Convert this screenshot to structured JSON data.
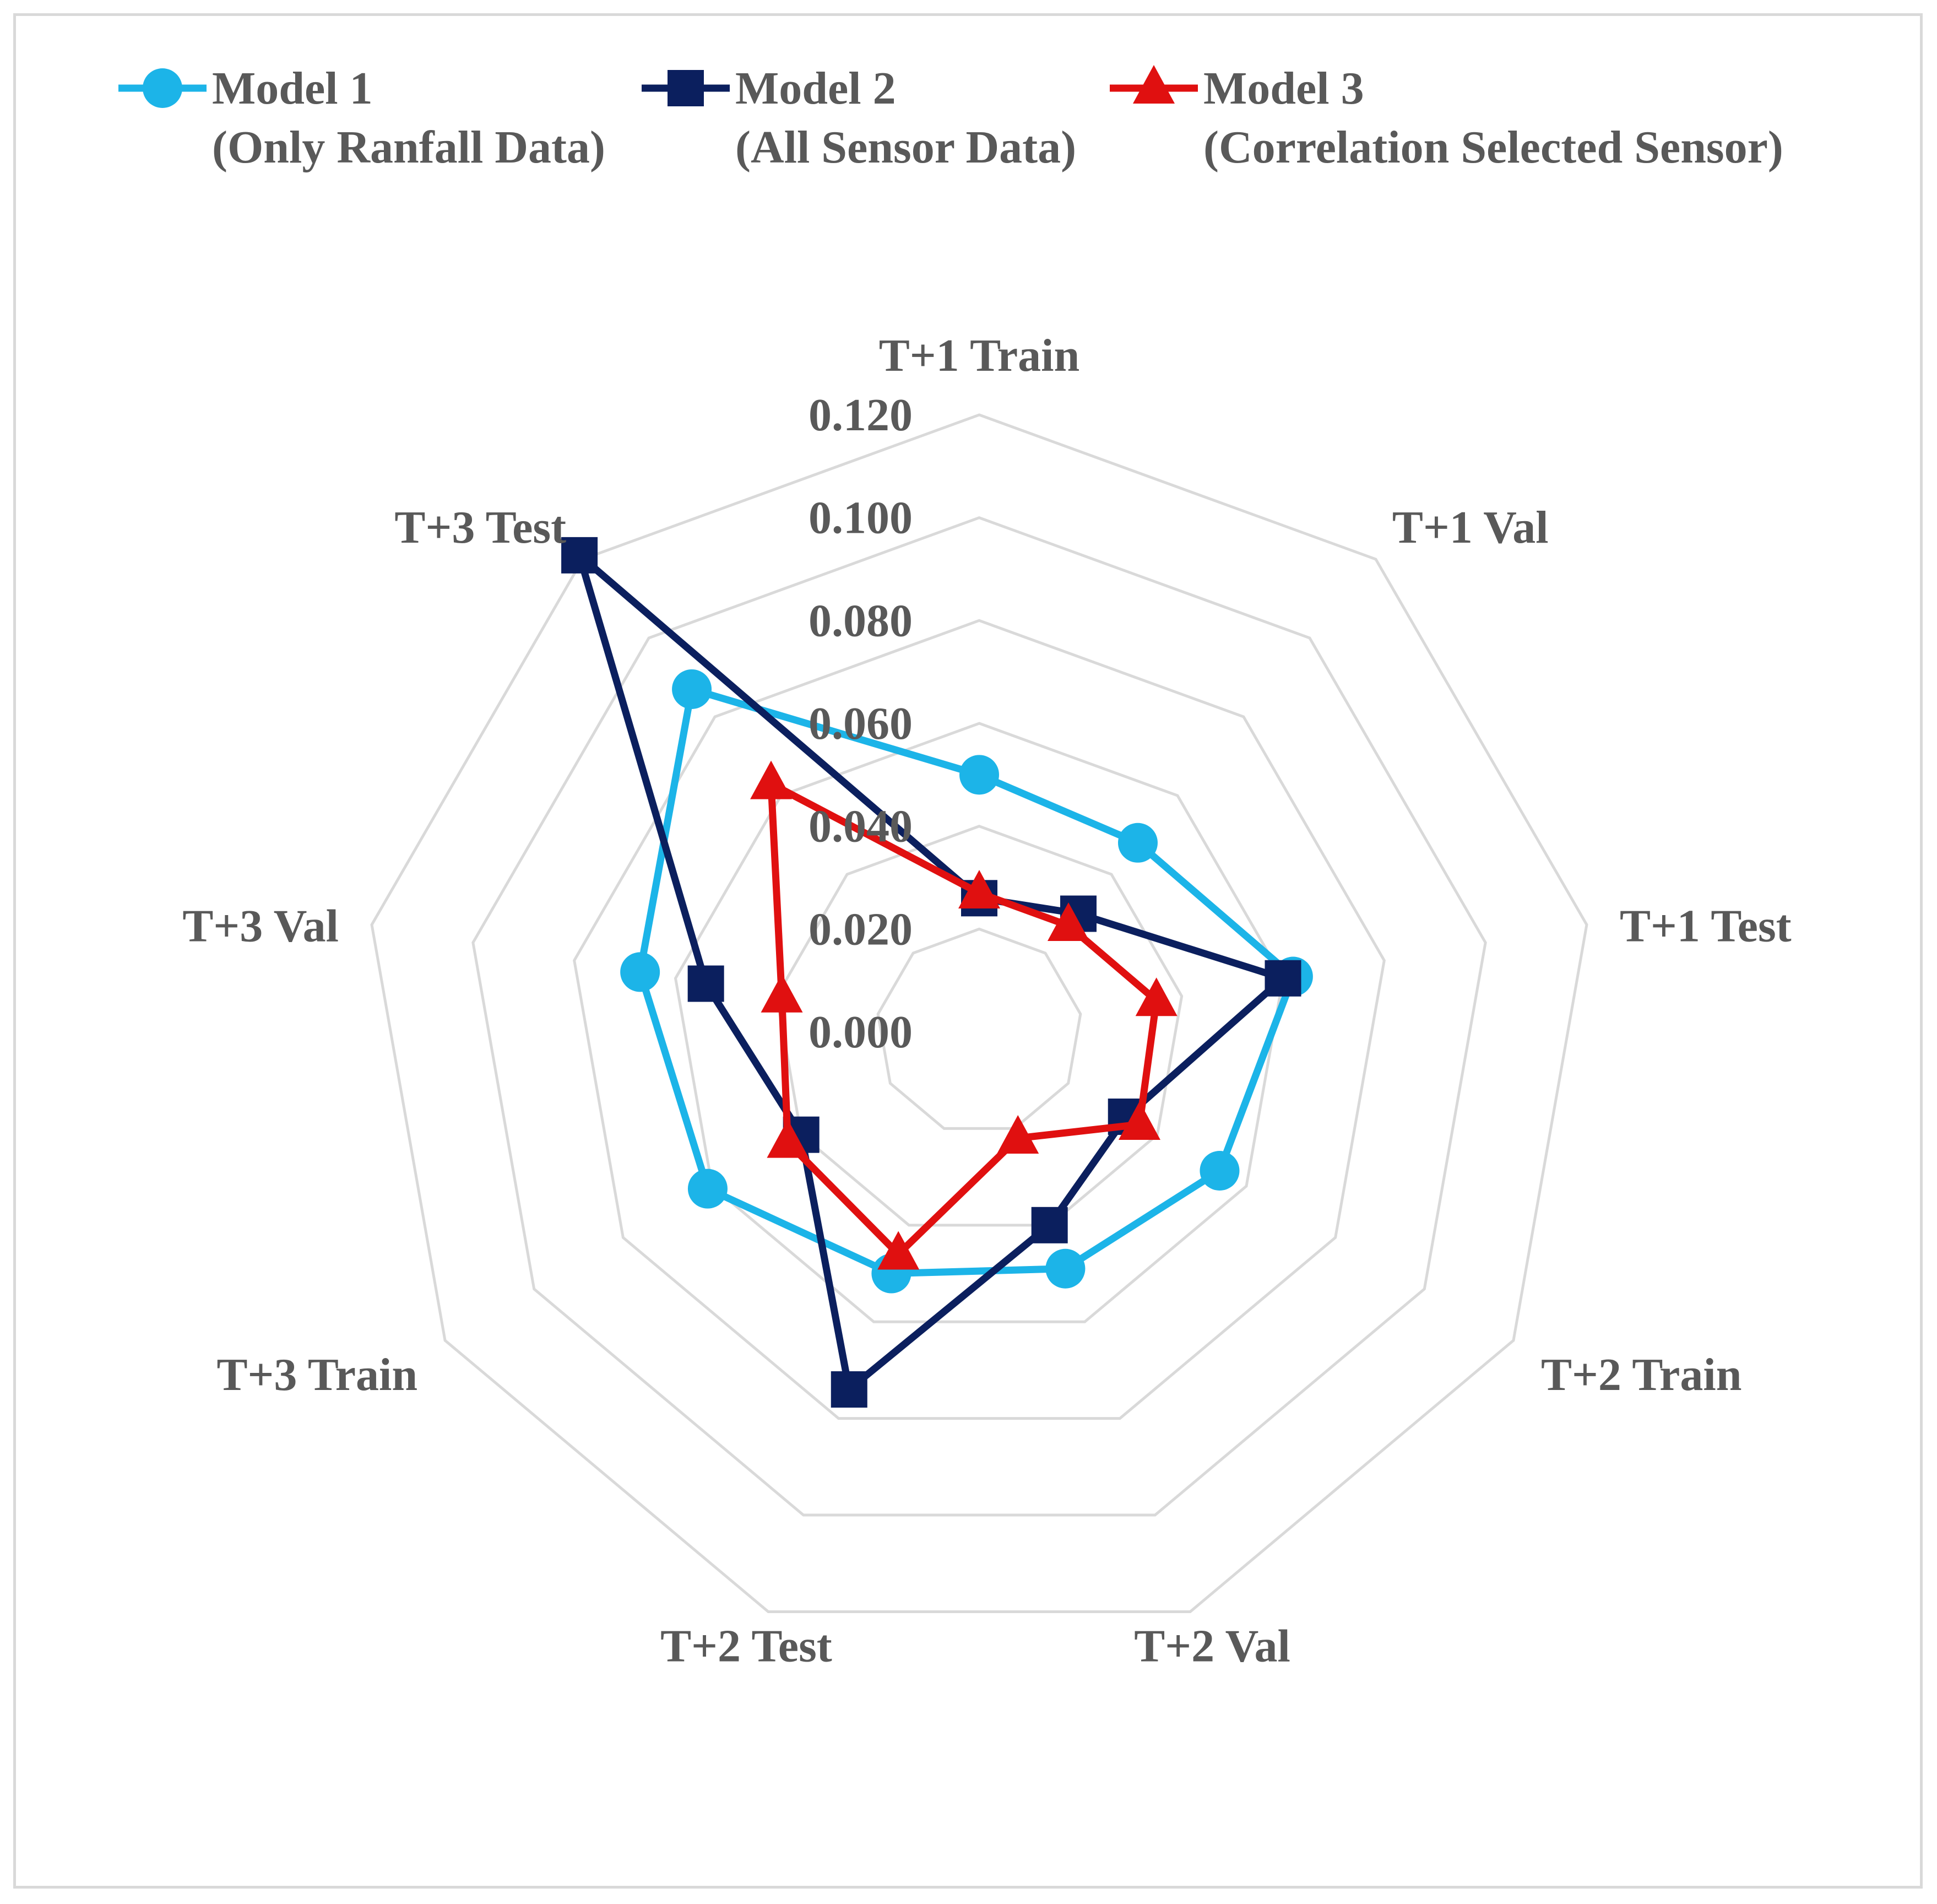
{
  "chart_data": {
    "type": "radar",
    "categories": [
      "T+1 Train",
      "T+1 Val",
      "T+1 Test",
      "T+2 Train",
      "T+2 Val",
      "T+2 Test",
      "T+3 Train",
      "T+3 Val",
      "T+3 Test"
    ],
    "ticks": [
      "0.000",
      "0.020",
      "0.040",
      "0.060",
      "0.080",
      "0.100",
      "0.120"
    ],
    "rlim": [
      0,
      0.12
    ],
    "grid": true,
    "legend_position": "top",
    "series": [
      {
        "name_line1": "Model 1",
        "name_line2": "(Only Ranfall Data)",
        "marker": "circle",
        "color": "#1cb4e8",
        "values": [
          0.05,
          0.048,
          0.062,
          0.054,
          0.049,
          0.05,
          0.061,
          0.067,
          0.087
        ]
      },
      {
        "name_line1": "Model 2",
        "name_line2": "(All Sensor Data)",
        "marker": "square",
        "color": "#0b1f5e",
        "values": [
          0.026,
          0.03,
          0.06,
          0.033,
          0.04,
          0.074,
          0.04,
          0.054,
          0.121
        ]
      },
      {
        "name_line1": "Model 3",
        "name_line2": "(Correlation Selected Sensor)",
        "marker": "triangle",
        "color": "#e01010",
        "values": [
          0.027,
          0.027,
          0.035,
          0.036,
          0.022,
          0.046,
          0.043,
          0.039,
          0.063
        ]
      }
    ]
  }
}
